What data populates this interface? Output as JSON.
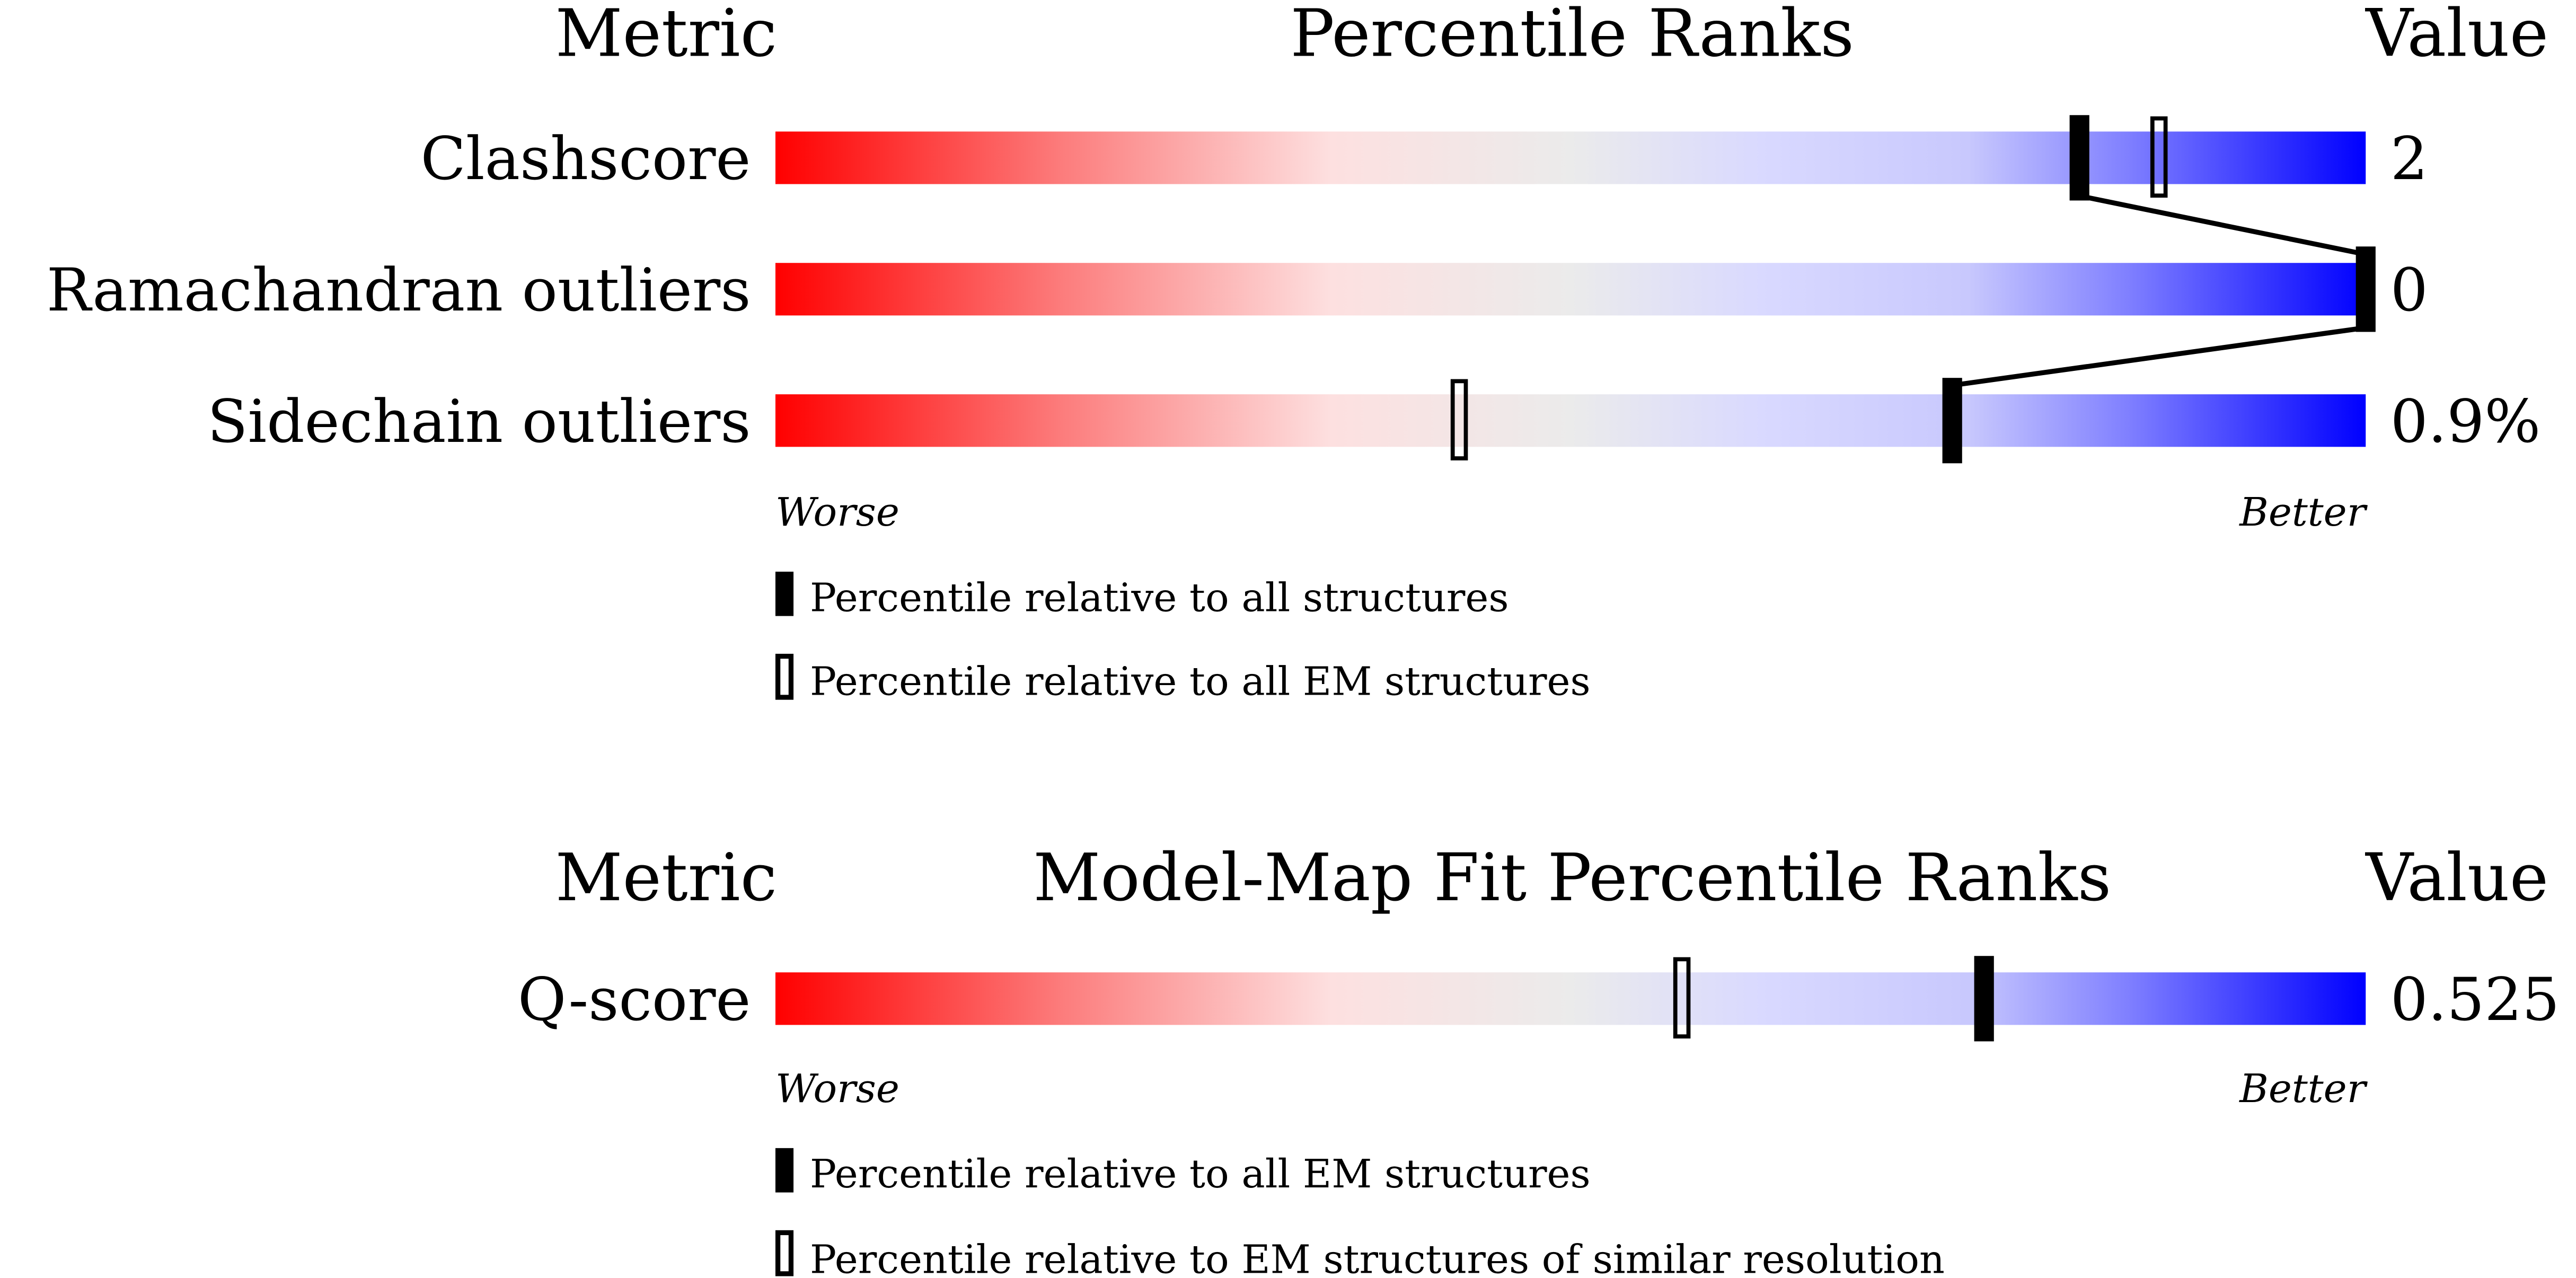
{
  "chart_data": [
    {
      "type": "percentile-slider",
      "header": {
        "metric": "Metric",
        "title": "Percentile Ranks",
        "value": "Value"
      },
      "range": [
        0,
        100
      ],
      "colors": {
        "worse": "#ff0000",
        "middle": "#ebebeb",
        "better": "#0000ff"
      },
      "rows": [
        {
          "label": "Clashscore",
          "value": "2",
          "percentile_all": 82,
          "percentile_em": 87
        },
        {
          "label": "Ramachandran outliers",
          "value": "0",
          "percentile_all": 100,
          "percentile_em": 100
        },
        {
          "label": "Sidechain outliers",
          "value": "0.9%",
          "percentile_all": 74,
          "percentile_em": 43
        }
      ],
      "worse_label": "Worse",
      "better_label": "Better",
      "legend": {
        "filled": "Percentile relative to all structures",
        "hollow": "Percentile relative to all EM structures"
      }
    },
    {
      "type": "percentile-slider",
      "header": {
        "metric": "Metric",
        "title": "Model-Map Fit Percentile Ranks",
        "value": "Value"
      },
      "range": [
        0,
        100
      ],
      "colors": {
        "worse": "#ff0000",
        "middle": "#ebebeb",
        "better": "#0000ff"
      },
      "rows": [
        {
          "label": "Q-score",
          "value": "0.525",
          "percentile_all": 76,
          "percentile_em": 57
        }
      ],
      "worse_label": "Worse",
      "better_label": "Better",
      "legend": {
        "filled": "Percentile relative to all EM structures",
        "hollow": "Percentile relative to EM structures of similar resolution"
      }
    }
  ]
}
